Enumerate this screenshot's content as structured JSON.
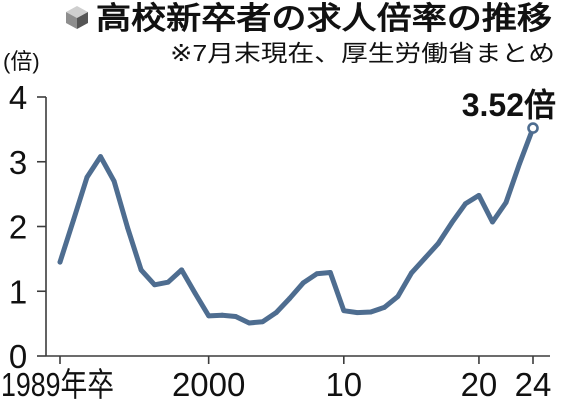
{
  "icons": {
    "title": "cube-icon"
  },
  "colors": {
    "line": "#4e6d90",
    "axis": "#3c3c3c",
    "text": "#111111",
    "marker_fill": "#ffffff",
    "icon_top": "#cfcfcf",
    "icon_left": "#8e8e8e",
    "icon_right": "#555555"
  },
  "chart_data": {
    "type": "line",
    "title": "高校新卒者の求人倍率の推移",
    "subtitle": "※7月末現在、厚生労働省まとめ",
    "ylabel": "(倍)",
    "ylim": [
      0,
      4
    ],
    "yticks": [
      0,
      1,
      2,
      3,
      4
    ],
    "xlim": [
      1989,
      2024
    ],
    "xticks": [
      {
        "value": 1989,
        "label": "1989年卒"
      },
      {
        "value": 2000,
        "label": "2000"
      },
      {
        "value": 2010,
        "label": "10"
      },
      {
        "value": 2020,
        "label": "20"
      },
      {
        "value": 2024,
        "label": "24"
      }
    ],
    "x": [
      1989,
      1990,
      1991,
      1992,
      1993,
      1994,
      1995,
      1996,
      1997,
      1998,
      1999,
      2000,
      2001,
      2002,
      2003,
      2004,
      2005,
      2006,
      2007,
      2008,
      2009,
      2010,
      2011,
      2012,
      2013,
      2014,
      2015,
      2016,
      2017,
      2018,
      2019,
      2020,
      2021,
      2022,
      2023,
      2024
    ],
    "series": [
      {
        "values": [
          1.45,
          2.1,
          2.76,
          3.08,
          2.7,
          1.98,
          1.33,
          1.1,
          1.14,
          1.33,
          0.97,
          0.62,
          0.63,
          0.61,
          0.51,
          0.53,
          0.67,
          0.89,
          1.13,
          1.27,
          1.29,
          0.7,
          0.67,
          0.68,
          0.75,
          0.92,
          1.28,
          1.51,
          1.74,
          2.06,
          2.35,
          2.48,
          2.07,
          2.37,
          2.97,
          3.52
        ]
      }
    ],
    "grid": false,
    "annotations": [
      {
        "x": 2024,
        "y": 3.52,
        "text": "3.52倍"
      }
    ]
  }
}
